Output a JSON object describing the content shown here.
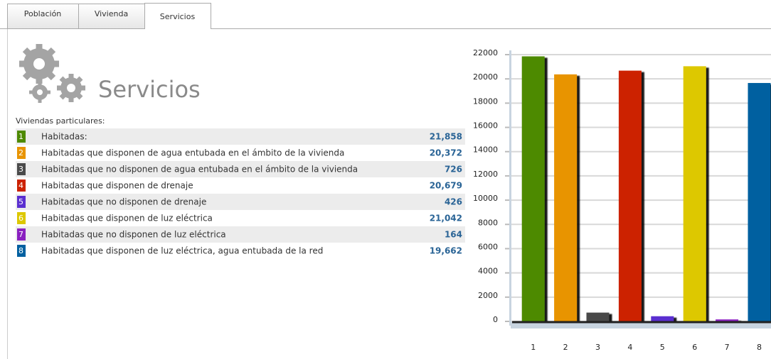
{
  "tabs": [
    "Población",
    "Vivienda",
    "Servicios"
  ],
  "heading": "Servicios",
  "subheading": "Viviendas particulares:",
  "rows": [
    {
      "num": "1",
      "label": "Habitadas:",
      "value": "21,858"
    },
    {
      "num": "2",
      "label": "Habitadas que disponen de agua entubada en el ámbito de la vivienda",
      "value": "20,372"
    },
    {
      "num": "3",
      "label": "Habitadas que no disponen de agua entubada en el ámbito de la vivienda",
      "value": "726"
    },
    {
      "num": "4",
      "label": "Habitadas que disponen de drenaje",
      "value": "20,679"
    },
    {
      "num": "5",
      "label": "Habitadas que no disponen de drenaje",
      "value": "426"
    },
    {
      "num": "6",
      "label": "Habitadas que disponen de luz eléctrica",
      "value": "21,042"
    },
    {
      "num": "7",
      "label": "Habitadas que no disponen de luz eléctrica",
      "value": "164"
    },
    {
      "num": "8",
      "label": "Habitadas que disponen de luz eléctrica, agua entubada de la red",
      "value": "19,662"
    }
  ],
  "chart_data": {
    "type": "bar",
    "categories": [
      "1",
      "2",
      "3",
      "4",
      "5",
      "6",
      "7",
      "8"
    ],
    "values": [
      21858,
      20372,
      726,
      20679,
      426,
      21042,
      164,
      19662
    ],
    "colors": [
      "#4e8a00",
      "#e89400",
      "#4a4a4a",
      "#cc2200",
      "#5a2fd0",
      "#ddc800",
      "#8a20c0",
      "#0060a0"
    ],
    "ylim": [
      0,
      22000
    ],
    "yticks": [
      0,
      2000,
      4000,
      6000,
      8000,
      10000,
      12000,
      14000,
      16000,
      18000,
      20000,
      22000
    ],
    "grid": true
  }
}
